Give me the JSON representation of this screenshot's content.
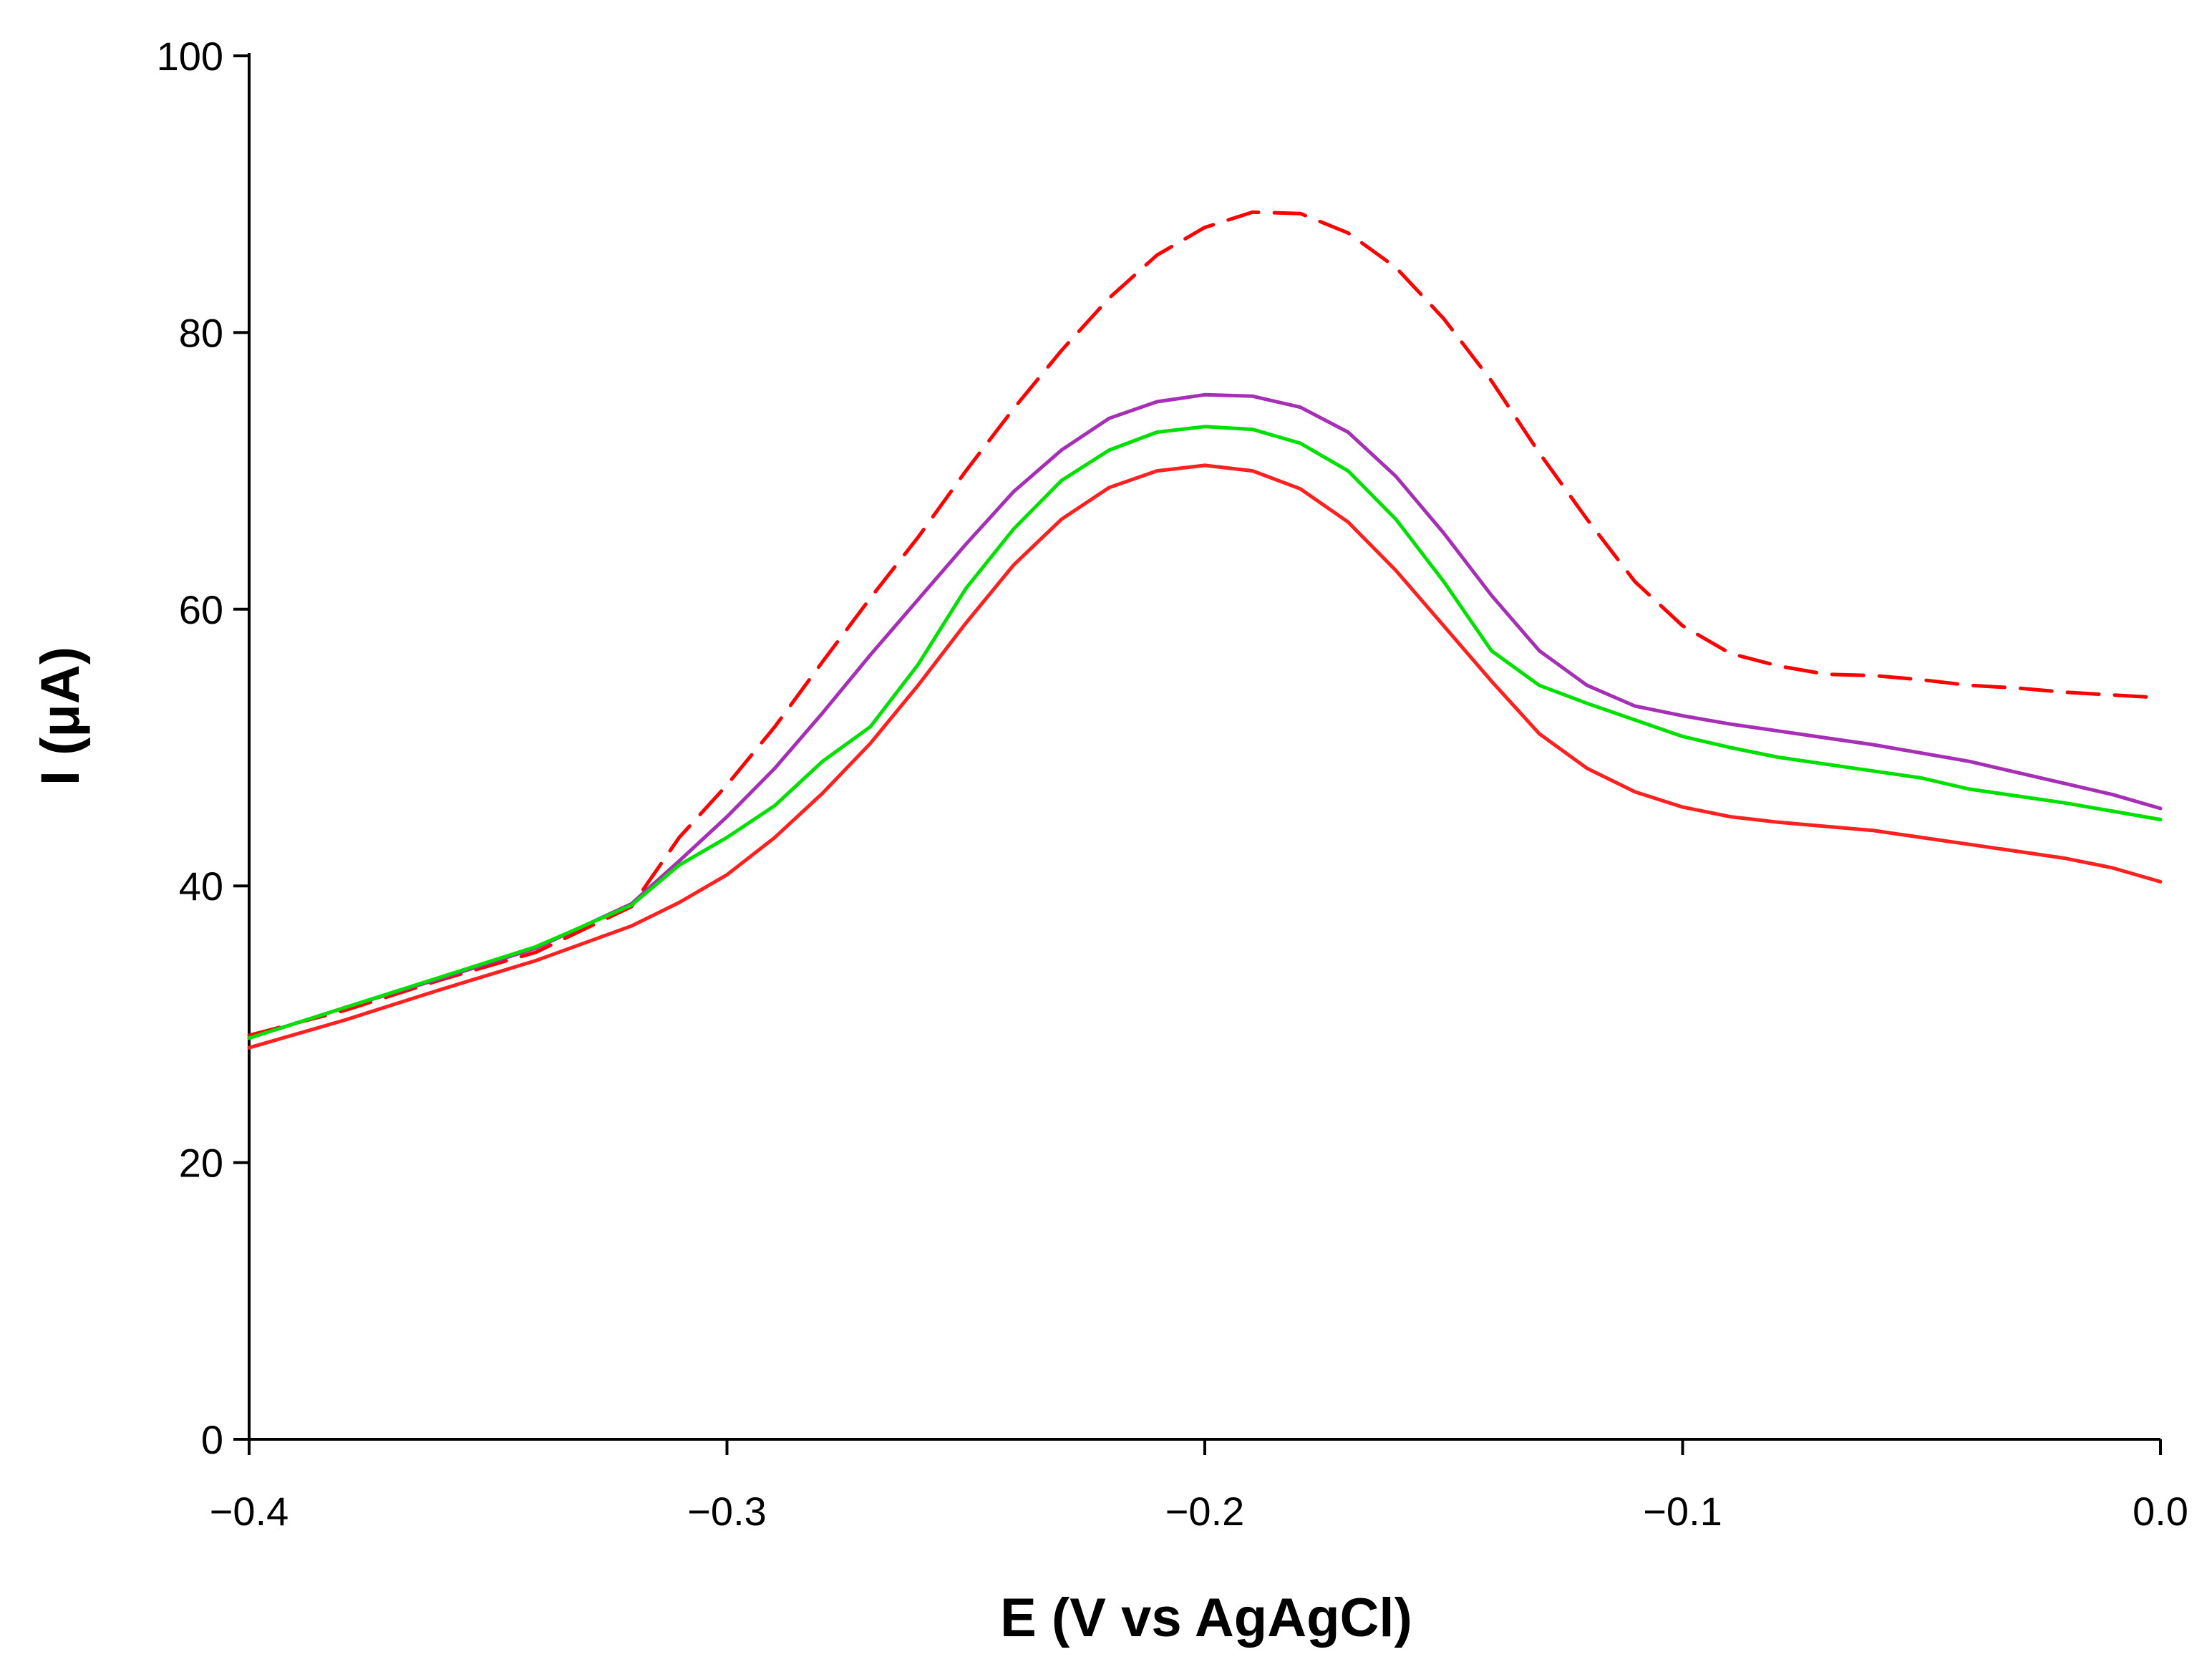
{
  "chart_data": {
    "type": "line",
    "title": "",
    "xlabel": "E (V vs AgAgCl)",
    "ylabel": "I (μA)",
    "xlim": [
      -0.4,
      0.0
    ],
    "ylim": [
      0,
      100
    ],
    "x_ticks": [
      {
        "value": -0.4,
        "label": "−0.4"
      },
      {
        "value": -0.3,
        "label": "−0.3"
      },
      {
        "value": -0.2,
        "label": "−0.2"
      },
      {
        "value": -0.1,
        "label": "−0.1"
      },
      {
        "value": 0.0,
        "label": "0.0"
      }
    ],
    "y_ticks": [
      {
        "value": 0,
        "label": "0"
      },
      {
        "value": 20,
        "label": "20"
      },
      {
        "value": 40,
        "label": "40"
      },
      {
        "value": 60,
        "label": "60"
      },
      {
        "value": 80,
        "label": "80"
      },
      {
        "value": 100,
        "label": "100"
      }
    ],
    "grid": false,
    "legend": "none",
    "series": [
      {
        "name": "red-dashed",
        "color": "#ff0000",
        "dashed": true,
        "x": [
          -0.4,
          -0.38,
          -0.36,
          -0.34,
          -0.32,
          -0.31,
          -0.3,
          -0.29,
          -0.28,
          -0.27,
          -0.26,
          -0.25,
          -0.24,
          -0.23,
          -0.22,
          -0.21,
          -0.2,
          -0.19,
          -0.18,
          -0.17,
          -0.16,
          -0.15,
          -0.14,
          -0.13,
          -0.12,
          -0.11,
          -0.1,
          -0.09,
          -0.08,
          -0.07,
          -0.06,
          -0.05,
          -0.04,
          -0.03,
          -0.02,
          -0.01,
          0.0
        ],
        "y": [
          29.2,
          31.0,
          33.2,
          35.2,
          38.5,
          43.5,
          47.3,
          51.5,
          56.2,
          60.8,
          65.2,
          70.0,
          74.5,
          78.7,
          82.5,
          85.6,
          87.6,
          88.7,
          88.6,
          87.2,
          84.7,
          81.0,
          76.5,
          71.3,
          66.5,
          62.0,
          58.8,
          56.8,
          55.9,
          55.3,
          55.2,
          54.9,
          54.5,
          54.3,
          54.0,
          53.8,
          53.6
        ]
      },
      {
        "name": "purple",
        "color": "#a530b5",
        "dashed": false,
        "x": [
          -0.4,
          -0.38,
          -0.36,
          -0.34,
          -0.32,
          -0.31,
          -0.3,
          -0.29,
          -0.28,
          -0.27,
          -0.26,
          -0.25,
          -0.24,
          -0.23,
          -0.22,
          -0.21,
          -0.2,
          -0.19,
          -0.18,
          -0.17,
          -0.16,
          -0.15,
          -0.14,
          -0.13,
          -0.12,
          -0.11,
          -0.1,
          -0.09,
          -0.08,
          -0.07,
          -0.06,
          -0.05,
          -0.04,
          -0.03,
          -0.02,
          -0.01,
          0.0
        ],
        "y": [
          29.0,
          31.2,
          33.3,
          35.5,
          38.7,
          41.8,
          45.0,
          48.5,
          52.5,
          56.7,
          60.7,
          64.7,
          68.5,
          71.5,
          73.8,
          75.0,
          75.5,
          75.4,
          74.6,
          72.8,
          69.6,
          65.5,
          61.0,
          57.0,
          54.5,
          53.0,
          52.3,
          51.7,
          51.2,
          50.7,
          50.2,
          49.6,
          49.0,
          48.2,
          47.4,
          46.6,
          45.6
        ]
      },
      {
        "name": "green",
        "color": "#00e000",
        "dashed": false,
        "x": [
          -0.4,
          -0.38,
          -0.36,
          -0.34,
          -0.32,
          -0.31,
          -0.3,
          -0.29,
          -0.28,
          -0.27,
          -0.26,
          -0.25,
          -0.24,
          -0.23,
          -0.22,
          -0.21,
          -0.2,
          -0.19,
          -0.18,
          -0.17,
          -0.16,
          -0.15,
          -0.14,
          -0.13,
          -0.12,
          -0.11,
          -0.1,
          -0.09,
          -0.08,
          -0.07,
          -0.06,
          -0.05,
          -0.04,
          -0.03,
          -0.02,
          -0.01,
          0.0
        ],
        "y": [
          29.0,
          31.2,
          33.4,
          35.6,
          38.6,
          41.5,
          43.5,
          45.8,
          49.0,
          51.5,
          56.0,
          61.5,
          65.8,
          69.3,
          71.5,
          72.8,
          73.2,
          73.0,
          72.0,
          70.0,
          66.5,
          62.0,
          57.0,
          54.5,
          53.2,
          52.0,
          50.8,
          50.0,
          49.3,
          48.8,
          48.3,
          47.8,
          47.0,
          46.5,
          46.0,
          45.4,
          44.8
        ]
      },
      {
        "name": "red",
        "color": "#ff2020",
        "dashed": false,
        "x": [
          -0.4,
          -0.38,
          -0.36,
          -0.34,
          -0.32,
          -0.31,
          -0.3,
          -0.29,
          -0.28,
          -0.27,
          -0.26,
          -0.25,
          -0.24,
          -0.23,
          -0.22,
          -0.21,
          -0.2,
          -0.19,
          -0.18,
          -0.17,
          -0.16,
          -0.15,
          -0.14,
          -0.13,
          -0.12,
          -0.11,
          -0.1,
          -0.09,
          -0.08,
          -0.07,
          -0.06,
          -0.05,
          -0.04,
          -0.03,
          -0.02,
          -0.01,
          0.0
        ],
        "y": [
          28.3,
          30.3,
          32.5,
          34.6,
          37.1,
          38.8,
          40.8,
          43.5,
          46.7,
          50.3,
          54.5,
          59.0,
          63.2,
          66.5,
          68.8,
          70.0,
          70.4,
          70.0,
          68.7,
          66.3,
          62.8,
          58.8,
          54.8,
          51.0,
          48.5,
          46.8,
          45.7,
          45.0,
          44.6,
          44.3,
          44.0,
          43.5,
          43.0,
          42.5,
          42.0,
          41.3,
          40.3
        ]
      }
    ]
  }
}
